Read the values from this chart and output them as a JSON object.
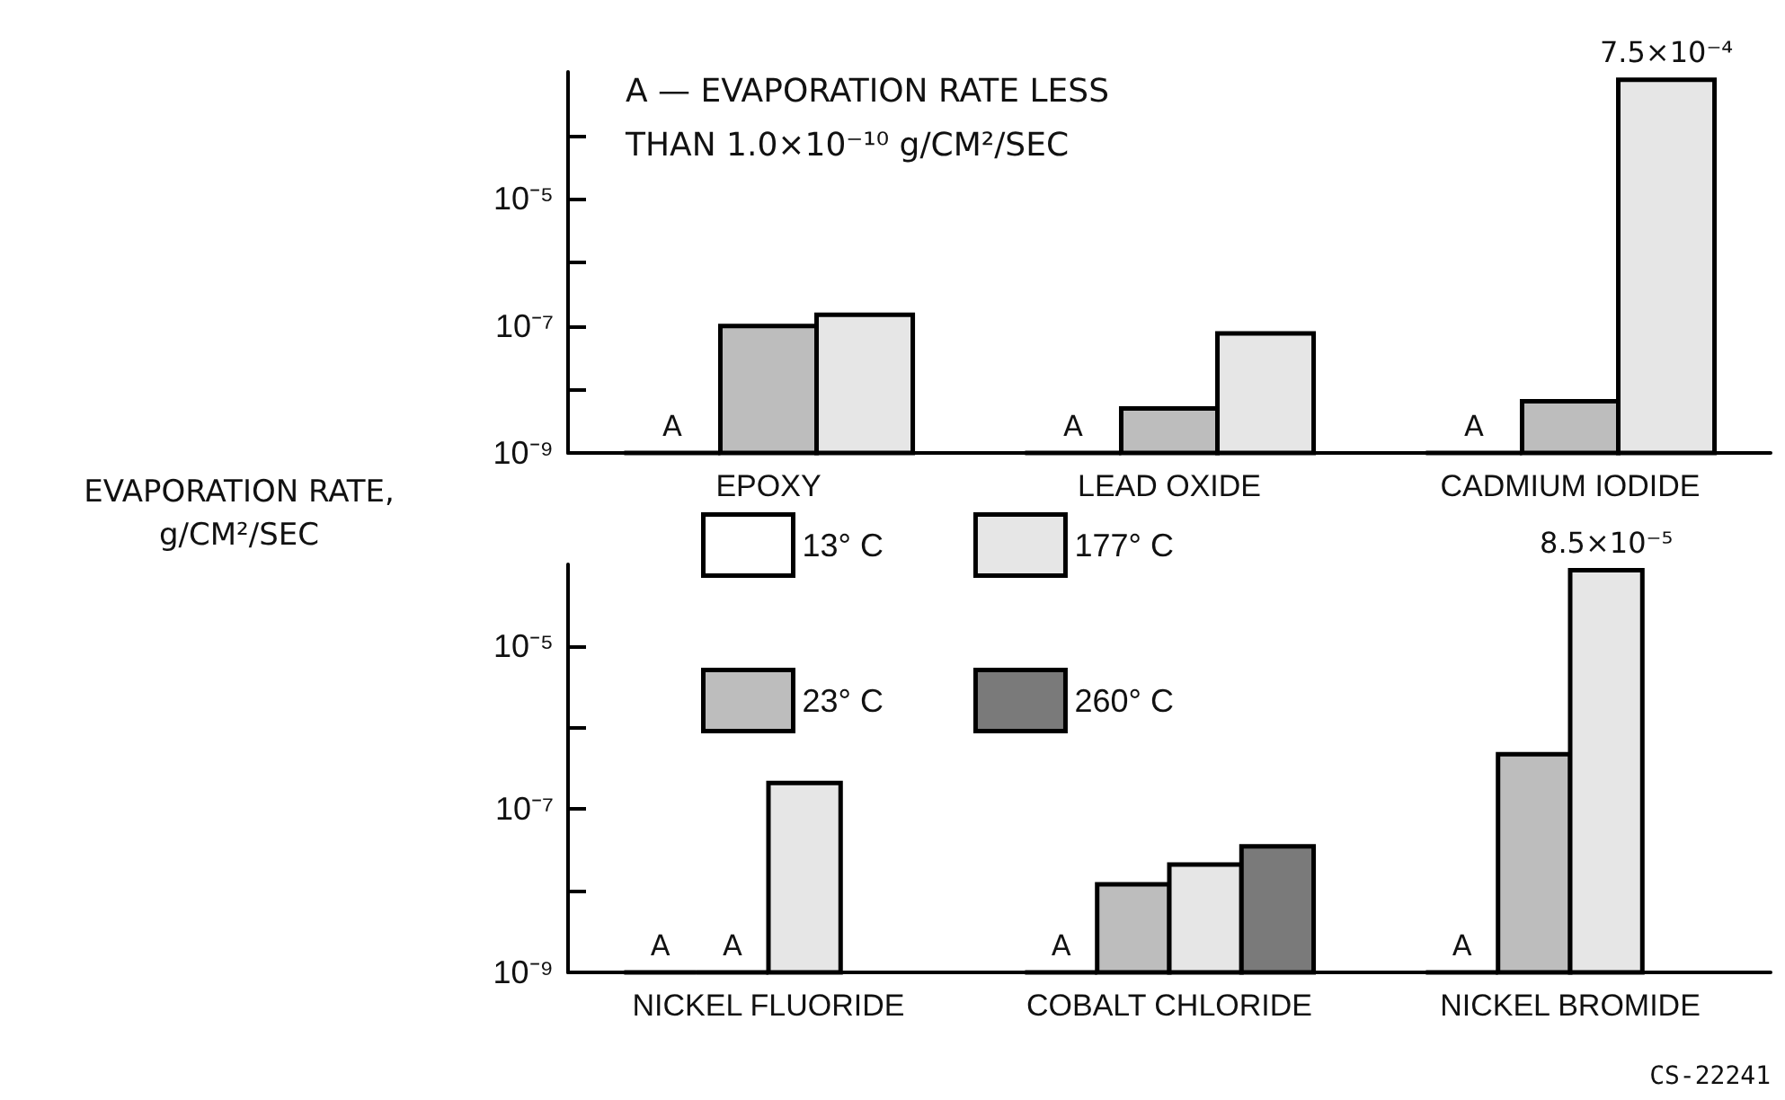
{
  "chart_data": [
    {
      "type": "bar",
      "categories": [
        "EPOXY",
        "LEAD OXIDE",
        "CADMIUM IODIDE"
      ],
      "ylabel": "EVAPORATION RATE, g/CM²/SEC",
      "annotations": [
        "A — EVAPORATION RATE LESS THAN 1.0×10⁻¹⁰ g/CM²/SEC"
      ],
      "series": [
        {
          "color": "#ffffff",
          "values": [
            null,
            null,
            null
          ],
          "value_labels": [
            "A",
            "A",
            "A"
          ]
        },
        {
          "color": "#bdbdbd",
          "values": [
            1e-07,
            5e-09,
            6.5e-09
          ]
        },
        {
          "color": "#e6e6e6",
          "values": [
            1.5e-07,
            7.6e-08,
            0.00075
          ],
          "value_labels": [
            null,
            null,
            "7.5×10⁻⁴"
          ]
        }
      ],
      "log": "y",
      "ylim": [
        1e-09,
        0.001
      ],
      "yticks": [
        {
          "value": 1e-09,
          "label": "10⁻⁹"
        },
        {
          "value": 1e-08,
          "label": null
        },
        {
          "value": 1e-07,
          "label": "10⁻⁷"
        },
        {
          "value": 1e-06,
          "label": null
        },
        {
          "value": 1e-05,
          "label": "10⁻⁵"
        },
        {
          "value": 0.0001,
          "label": null
        }
      ],
      "grid": false,
      "legend": false
    },
    {
      "type": "bar",
      "categories": [
        "NICKEL FLUORIDE",
        "COBALT CHLORIDE",
        "NICKEL BROMIDE"
      ],
      "annotations": [
        "CS-22241"
      ],
      "series": [
        {
          "name": "13° C",
          "color": "#ffffff",
          "values": [
            null,
            null,
            null
          ],
          "value_labels": [
            "A",
            "A",
            "A"
          ]
        },
        {
          "name": "23° C",
          "color": "#bdbdbd",
          "values": [
            null,
            1.2e-08,
            4.7e-07
          ],
          "value_labels": [
            "A",
            null,
            null
          ]
        },
        {
          "name": "177° C",
          "color": "#e6e6e6",
          "values": [
            2.1e-07,
            2.1e-08,
            8.5e-05
          ],
          "value_labels": [
            null,
            null,
            "8.5×10⁻⁵"
          ]
        },
        {
          "name": "260° C",
          "color": "#7a7a7a",
          "values": [
            null,
            3.5e-08,
            null
          ]
        }
      ],
      "log": "y",
      "ylim": [
        1e-09,
        0.0001
      ],
      "yticks": [
        {
          "value": 1e-09,
          "label": "10⁻⁹"
        },
        {
          "value": 1e-08,
          "label": null
        },
        {
          "value": 1e-07,
          "label": "10⁻⁷"
        },
        {
          "value": 1e-06,
          "label": null
        },
        {
          "value": 1e-05,
          "label": "10⁻⁵"
        }
      ],
      "grid": false,
      "legend": "top left"
    }
  ]
}
